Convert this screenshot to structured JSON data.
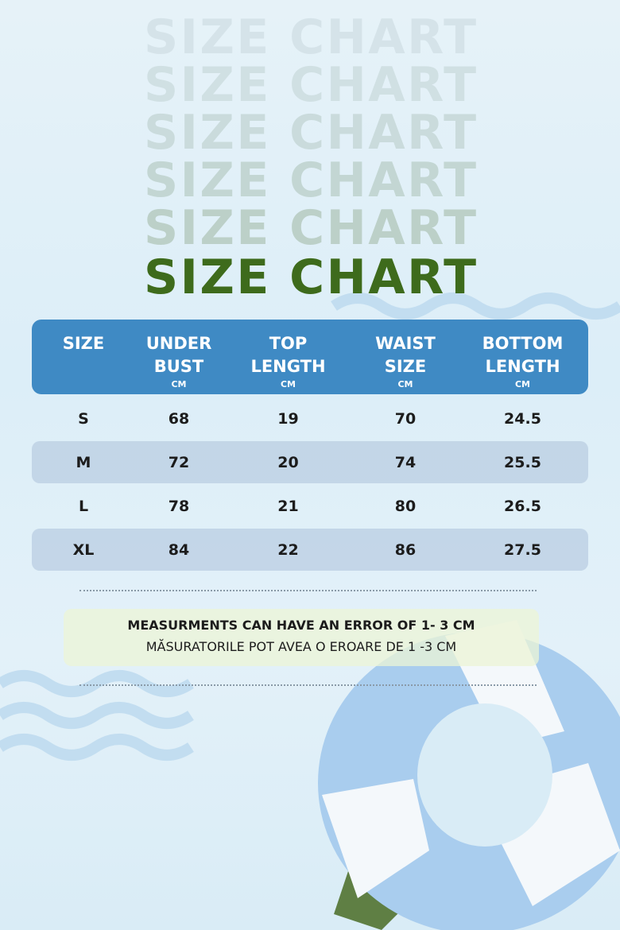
{
  "title": "SIZE CHART",
  "table": {
    "headers": [
      {
        "lines": [
          "SIZE"
        ]
      },
      {
        "lines": [
          "UNDER",
          "BUST"
        ],
        "unit": "CM"
      },
      {
        "lines": [
          "TOP",
          "LENGTH"
        ],
        "unit": "CM"
      },
      {
        "lines": [
          "WAIST",
          "SIZE"
        ],
        "unit": "CM"
      },
      {
        "lines": [
          "BOTTOM",
          "LENGTH"
        ],
        "unit": "CM"
      }
    ],
    "rows": [
      [
        "S",
        68,
        19,
        70,
        24.5
      ],
      [
        "M",
        72,
        20,
        74,
        25.5
      ],
      [
        "L",
        78,
        21,
        80,
        26.5
      ],
      [
        "XL",
        84,
        22,
        86,
        27.5
      ]
    ]
  },
  "note": {
    "line1": "MEASURMENTS CAN HAVE AN ERROR OF 1- 3 CM",
    "line2": "MĂSURATORILE POT AVEA O EROARE DE 1 -3 CM"
  }
}
